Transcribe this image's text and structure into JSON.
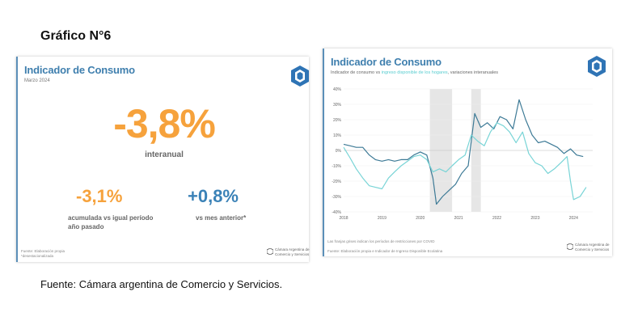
{
  "page": {
    "heading": "Gráfico N°6",
    "footer": "Fuente: Cámara argentina de Comercio y Servicios."
  },
  "left_card": {
    "title": "Indicador de Consumo",
    "subtitle": "Marzo 2024",
    "main_value": "-3,8%",
    "main_label": "interanual",
    "accumulated_value": "-3,1%",
    "accumulated_label": "acumulada vs igual período año pasado",
    "monthly_value": "+0,8%",
    "monthly_label": "vs mes anterior*",
    "source": "Fuente: Elaboración propia *desestacionalizada",
    "brand": "Cámara Argentina de Comercio y Servicios",
    "colors": {
      "main": "#f6a23c",
      "secondary": "#3b82b7"
    }
  },
  "right_card": {
    "title": "Indicador de Consumo",
    "subtitle_a": "Indicador de consumo vs ",
    "subtitle_b": "ingreso disponible de los hogares",
    "subtitle_c": ", variaciones interanuales",
    "note": "Las franjas grises indican los períodos de restricciones por COVID",
    "source": "Fuente: Elaboración propia e Indicador de Ingreso Disponible Ecolatina",
    "brand": "Cámara Argentina de Comercio y Servicios"
  },
  "chart_data": {
    "type": "line",
    "title": "Indicador de Consumo",
    "xlabel": "",
    "ylabel": "",
    "x_ticks": [
      "2018",
      "2019",
      "2020",
      "2021",
      "2022",
      "2023",
      "2024"
    ],
    "y_ticks": [
      "40%",
      "30%",
      "20%",
      "10%",
      "0%",
      "-10%",
      "-20%",
      "-30%",
      "-40%"
    ],
    "xlim": [
      2018.0,
      2024.5
    ],
    "ylim": [
      -40,
      40
    ],
    "grid": "horizontal",
    "shaded_periods": [
      [
        2020.25,
        2020.83
      ],
      [
        2021.33,
        2021.58
      ]
    ],
    "series": [
      {
        "color": "#3d7a96",
        "points": [
          [
            2018.0,
            4
          ],
          [
            2018.17,
            3
          ],
          [
            2018.33,
            2
          ],
          [
            2018.5,
            2
          ],
          [
            2018.67,
            -3
          ],
          [
            2018.83,
            -6
          ],
          [
            2019.0,
            -7
          ],
          [
            2019.17,
            -6
          ],
          [
            2019.33,
            -7
          ],
          [
            2019.5,
            -6
          ],
          [
            2019.67,
            -6
          ],
          [
            2019.83,
            -3
          ],
          [
            2020.0,
            -1
          ],
          [
            2020.17,
            -3
          ],
          [
            2020.33,
            -18
          ],
          [
            2020.42,
            -35
          ],
          [
            2020.58,
            -30
          ],
          [
            2020.75,
            -26
          ],
          [
            2020.92,
            -22
          ],
          [
            2021.08,
            -15
          ],
          [
            2021.25,
            -10
          ],
          [
            2021.42,
            24
          ],
          [
            2021.58,
            15
          ],
          [
            2021.75,
            18
          ],
          [
            2021.92,
            14
          ],
          [
            2022.08,
            22
          ],
          [
            2022.25,
            20
          ],
          [
            2022.42,
            14
          ],
          [
            2022.58,
            33
          ],
          [
            2022.75,
            20
          ],
          [
            2022.92,
            10
          ],
          [
            2023.08,
            5
          ],
          [
            2023.25,
            6
          ],
          [
            2023.42,
            4
          ],
          [
            2023.58,
            2
          ],
          [
            2023.75,
            -2
          ],
          [
            2023.92,
            1
          ],
          [
            2024.08,
            -3
          ],
          [
            2024.25,
            -4
          ]
        ]
      },
      {
        "color": "#78d4d6",
        "points": [
          [
            2018.0,
            2
          ],
          [
            2018.17,
            -5
          ],
          [
            2018.33,
            -12
          ],
          [
            2018.5,
            -18
          ],
          [
            2018.67,
            -23
          ],
          [
            2018.83,
            -24
          ],
          [
            2019.0,
            -25
          ],
          [
            2019.17,
            -18
          ],
          [
            2019.33,
            -14
          ],
          [
            2019.5,
            -10
          ],
          [
            2019.67,
            -7
          ],
          [
            2019.83,
            -4
          ],
          [
            2020.0,
            -3
          ],
          [
            2020.17,
            -6
          ],
          [
            2020.33,
            -14
          ],
          [
            2020.5,
            -12
          ],
          [
            2020.67,
            -14
          ],
          [
            2020.83,
            -10
          ],
          [
            2021.0,
            -6
          ],
          [
            2021.17,
            -3
          ],
          [
            2021.33,
            10
          ],
          [
            2021.5,
            6
          ],
          [
            2021.67,
            3
          ],
          [
            2021.83,
            12
          ],
          [
            2022.0,
            18
          ],
          [
            2022.17,
            16
          ],
          [
            2022.33,
            12
          ],
          [
            2022.5,
            5
          ],
          [
            2022.67,
            12
          ],
          [
            2022.83,
            -2
          ],
          [
            2023.0,
            -8
          ],
          [
            2023.17,
            -10
          ],
          [
            2023.33,
            -15
          ],
          [
            2023.5,
            -12
          ],
          [
            2023.67,
            -8
          ],
          [
            2023.83,
            -4
          ],
          [
            2023.92,
            -20
          ],
          [
            2024.0,
            -32
          ],
          [
            2024.17,
            -30
          ],
          [
            2024.33,
            -24
          ]
        ]
      }
    ]
  }
}
